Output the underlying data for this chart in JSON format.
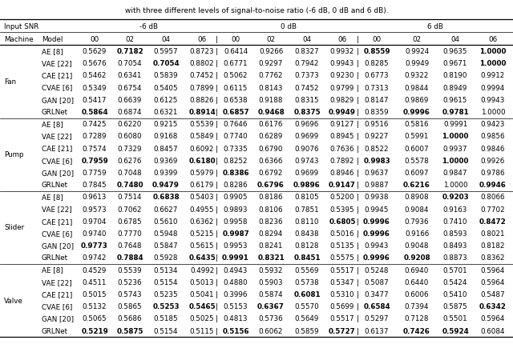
{
  "subtitle": "with three different levels of signal-to-noise ratio (-6 dB, 0 dB and 6 dB).",
  "machines": [
    "Fan",
    "Pump",
    "Slider",
    "Valve"
  ],
  "models": [
    "AE [8]",
    "VAE [22]",
    "CAE [21]",
    "CVAE [6]",
    "GAN [20]",
    "GRLNet"
  ],
  "data": {
    "Fan": {
      "AE [8]": [
        "0.5629",
        "0.7182",
        "0.5957",
        "0.8723",
        "0.6414",
        "0.9266",
        "0.8327",
        "0.9932",
        "0.8559",
        "0.9924",
        "0.9635",
        "1.0000"
      ],
      "VAE [22]": [
        "0.5676",
        "0.7054",
        "0.7054",
        "0.8802",
        "0.6771",
        "0.9297",
        "0.7942",
        "0.9943",
        "0.8285",
        "0.9949",
        "0.9671",
        "1.0000"
      ],
      "CAE [21]": [
        "0.5462",
        "0.6341",
        "0.5839",
        "0.7452",
        "0.5062",
        "0.7762",
        "0.7373",
        "0.9230",
        "0.6773",
        "0.9322",
        "0.8190",
        "0.9912"
      ],
      "CVAE [6]": [
        "0.5349",
        "0.6754",
        "0.5405",
        "0.7899",
        "0.6115",
        "0.8143",
        "0.7452",
        "0.9799",
        "0.7313",
        "0.9844",
        "0.8949",
        "0.9994"
      ],
      "GAN [20]": [
        "0.5417",
        "0.6639",
        "0.6125",
        "0.8826",
        "0.6538",
        "0.9188",
        "0.8315",
        "0.9829",
        "0.8147",
        "0.9869",
        "0.9615",
        "0.9943"
      ],
      "GRLNet": [
        "0.5864",
        "0.6874",
        "0.6321",
        "0.8914",
        "0.6857",
        "0.9468",
        "0.8375",
        "0.9949",
        "0.8359",
        "0.9996",
        "0.9781",
        "1.0000"
      ]
    },
    "Pump": {
      "AE [8]": [
        "0.7425",
        "0.6220",
        "0.9215",
        "0.5539",
        "0.7646",
        "0.6176",
        "0.9696",
        "0.9127",
        "0.9516",
        "0.5816",
        "0.9991",
        "0.9423"
      ],
      "VAE [22]": [
        "0.7289",
        "0.6080",
        "0.9168",
        "0.5849",
        "0.7740",
        "0.6289",
        "0.9699",
        "0.8945",
        "0.9227",
        "0.5991",
        "1.0000",
        "0.9856"
      ],
      "CAE [21]": [
        "0.7574",
        "0.7329",
        "0.8457",
        "0.6092",
        "0.7335",
        "0.6790",
        "0.9076",
        "0.7636",
        "0.8522",
        "0.6007",
        "0.9937",
        "0.9846"
      ],
      "CVAE [6]": [
        "0.7959",
        "0.6276",
        "0.9369",
        "0.6180",
        "0.8252",
        "0.6366",
        "0.9743",
        "0.7892",
        "0.9983",
        "0.5578",
        "1.0000",
        "0.9926"
      ],
      "GAN [20]": [
        "0.7759",
        "0.7048",
        "0.9399",
        "0.5979",
        "0.8386",
        "0.6792",
        "0.9699",
        "0.8946",
        "0.9637",
        "0.6097",
        "0.9847",
        "0.9786"
      ],
      "GRLNet": [
        "0.7845",
        "0.7480",
        "0.9479",
        "0.6179",
        "0.8286",
        "0.6796",
        "0.9896",
        "0.9147",
        "0.9887",
        "0.6216",
        "1.0000",
        "0.9946"
      ]
    },
    "Slider": {
      "AE [8]": [
        "0.9613",
        "0.7514",
        "0.6838",
        "0.5403",
        "0.9905",
        "0.8186",
        "0.8105",
        "0.5200",
        "0.9938",
        "0.8908",
        "0.9203",
        "0.8066"
      ],
      "VAE [22]": [
        "0.9573",
        "0.7062",
        "0.6627",
        "0.4955",
        "0.9893",
        "0.8106",
        "0.7851",
        "0.5395",
        "0.9945",
        "0.9084",
        "0.9163",
        "0.7702"
      ],
      "CAE [21]": [
        "0.9704",
        "0.6785",
        "0.5610",
        "0.6362",
        "0.9958",
        "0.8236",
        "0.8110",
        "0.6805",
        "0.9996",
        "0.7936",
        "0.7410",
        "0.8472"
      ],
      "CVAE [6]": [
        "0.9740",
        "0.7770",
        "0.5948",
        "0.5215",
        "0.9987",
        "0.8294",
        "0.8438",
        "0.5016",
        "0.9996",
        "0.9166",
        "0.8593",
        "0.8021"
      ],
      "GAN [20]": [
        "0.9773",
        "0.7648",
        "0.5847",
        "0.5615",
        "0.9953",
        "0.8241",
        "0.8128",
        "0.5135",
        "0.9943",
        "0.9048",
        "0.8493",
        "0.8182"
      ],
      "GRLNet": [
        "0.9742",
        "0.7884",
        "0.5928",
        "0.6435",
        "0.9991",
        "0.8321",
        "0.8451",
        "0.5575",
        "0.9996",
        "0.9208",
        "0.8873",
        "0.8362"
      ]
    },
    "Valve": {
      "AE [8]": [
        "0.4529",
        "0.5539",
        "0.5134",
        "0.4992",
        "0.4943",
        "0.5932",
        "0.5569",
        "0.5517",
        "0.5248",
        "0.6940",
        "0.5701",
        "0.5964"
      ],
      "VAE [22]": [
        "0.4511",
        "0.5236",
        "0.5154",
        "0.5013",
        "0.4880",
        "0.5903",
        "0.5738",
        "0.5347",
        "0.5087",
        "0.6440",
        "0.5424",
        "0.5964"
      ],
      "CAE [21]": [
        "0.5015",
        "0.5743",
        "0.5235",
        "0.5041",
        "0.3996",
        "0.5874",
        "0.6081",
        "0.5310",
        "0.3477",
        "0.6006",
        "0.5410",
        "0.5487"
      ],
      "CVAE [6]": [
        "0.5132",
        "0.5865",
        "0.5253",
        "0.5465",
        "0.5153",
        "0.6367",
        "0.5570",
        "0.5699",
        "0.6584",
        "0.7394",
        "0.5875",
        "0.6342"
      ],
      "GAN [20]": [
        "0.5065",
        "0.5686",
        "0.5185",
        "0.5025",
        "0.4813",
        "0.5736",
        "0.5649",
        "0.5517",
        "0.5297",
        "0.7128",
        "0.5501",
        "0.5964"
      ],
      "GRLNet": [
        "0.5219",
        "0.5875",
        "0.5154",
        "0.5115",
        "0.5156",
        "0.6062",
        "0.5859",
        "0.5727",
        "0.6137",
        "0.7426",
        "0.5924",
        "0.6084"
      ]
    }
  },
  "bold": {
    "Fan": {
      "AE [8]": [
        false,
        true,
        false,
        false,
        false,
        false,
        false,
        false,
        true,
        false,
        false,
        true
      ],
      "VAE [22]": [
        false,
        false,
        true,
        false,
        false,
        false,
        false,
        false,
        false,
        false,
        false,
        true
      ],
      "CAE [21]": [
        false,
        false,
        false,
        false,
        false,
        false,
        false,
        false,
        false,
        false,
        false,
        false
      ],
      "CVAE [6]": [
        false,
        false,
        false,
        false,
        false,
        false,
        false,
        false,
        false,
        false,
        false,
        false
      ],
      "GAN [20]": [
        false,
        false,
        false,
        false,
        false,
        false,
        false,
        false,
        false,
        false,
        false,
        false
      ],
      "GRLNet": [
        true,
        false,
        false,
        true,
        true,
        true,
        true,
        true,
        false,
        true,
        true,
        false
      ]
    },
    "Pump": {
      "AE [8]": [
        false,
        false,
        false,
        false,
        false,
        false,
        false,
        false,
        false,
        false,
        false,
        false
      ],
      "VAE [22]": [
        false,
        false,
        false,
        false,
        false,
        false,
        false,
        false,
        false,
        false,
        true,
        false
      ],
      "CAE [21]": [
        false,
        false,
        false,
        false,
        false,
        false,
        false,
        false,
        false,
        false,
        false,
        false
      ],
      "CVAE [6]": [
        true,
        false,
        false,
        true,
        false,
        false,
        false,
        false,
        true,
        false,
        true,
        false
      ],
      "GAN [20]": [
        false,
        false,
        false,
        false,
        true,
        false,
        false,
        false,
        false,
        false,
        false,
        false
      ],
      "GRLNet": [
        false,
        true,
        true,
        false,
        false,
        true,
        true,
        true,
        false,
        true,
        false,
        true
      ]
    },
    "Slider": {
      "AE [8]": [
        false,
        false,
        true,
        false,
        false,
        false,
        false,
        false,
        false,
        false,
        true,
        false
      ],
      "VAE [22]": [
        false,
        false,
        false,
        false,
        false,
        false,
        false,
        false,
        false,
        false,
        false,
        false
      ],
      "CAE [21]": [
        false,
        false,
        false,
        false,
        false,
        false,
        false,
        true,
        true,
        false,
        false,
        true
      ],
      "CVAE [6]": [
        false,
        false,
        false,
        false,
        true,
        false,
        false,
        false,
        true,
        false,
        false,
        false
      ],
      "GAN [20]": [
        true,
        false,
        false,
        false,
        false,
        false,
        false,
        false,
        false,
        false,
        false,
        false
      ],
      "GRLNet": [
        false,
        true,
        false,
        true,
        true,
        true,
        true,
        false,
        true,
        true,
        false,
        false
      ]
    },
    "Valve": {
      "AE [8]": [
        false,
        false,
        false,
        false,
        false,
        false,
        false,
        false,
        false,
        false,
        false,
        false
      ],
      "VAE [22]": [
        false,
        false,
        false,
        false,
        false,
        false,
        false,
        false,
        false,
        false,
        false,
        false
      ],
      "CAE [21]": [
        false,
        false,
        false,
        false,
        false,
        false,
        true,
        false,
        false,
        false,
        false,
        false
      ],
      "CVAE [6]": [
        false,
        false,
        true,
        true,
        false,
        true,
        false,
        false,
        true,
        false,
        false,
        true
      ],
      "GAN [20]": [
        false,
        false,
        false,
        false,
        false,
        false,
        false,
        false,
        false,
        false,
        false,
        false
      ],
      "GRLNet": [
        true,
        true,
        false,
        false,
        true,
        false,
        false,
        true,
        false,
        true,
        true,
        false
      ]
    }
  }
}
